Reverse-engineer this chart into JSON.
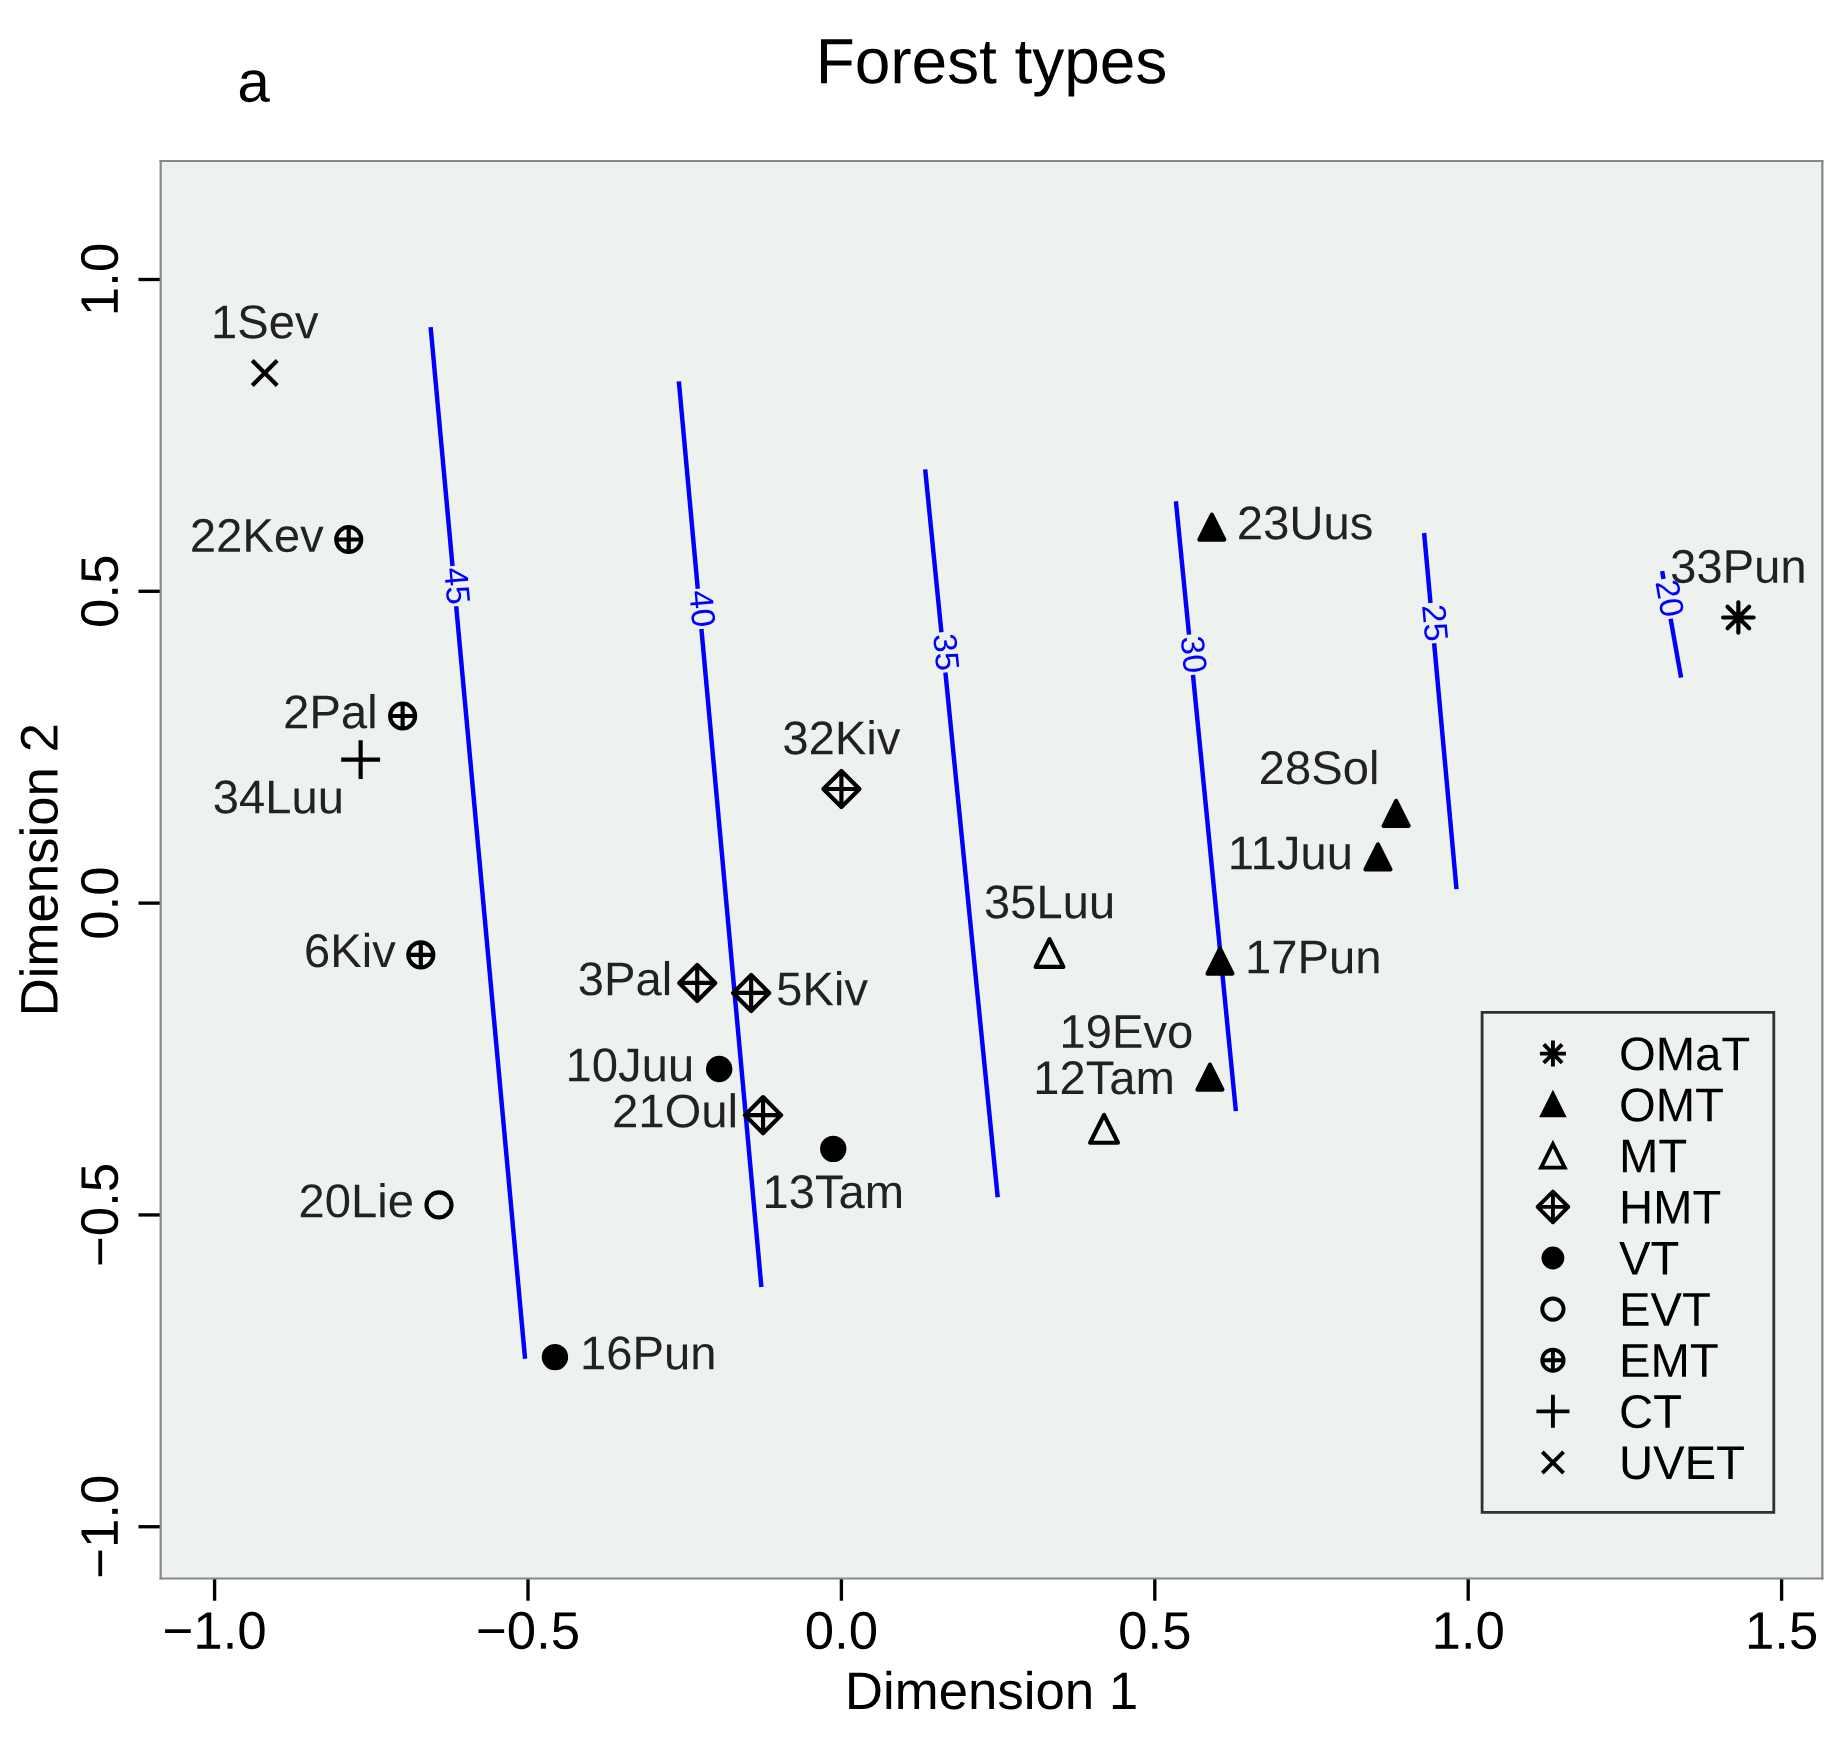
{
  "chart_data": {
    "type": "scatter",
    "title": "Forest types",
    "xlabel": "Dimension 1",
    "ylabel": "Dimension 2",
    "xlim": [
      -1.086,
      1.565
    ],
    "ylim": [
      -1.083,
      1.19
    ],
    "xticks": [
      {
        "value": -1.0,
        "label": "−1.0"
      },
      {
        "value": -0.5,
        "label": "−0.5"
      },
      {
        "value": 0.0,
        "label": "0.0"
      },
      {
        "value": 0.5,
        "label": "0.5"
      },
      {
        "value": 1.0,
        "label": "1.0"
      },
      {
        "value": 1.5,
        "label": "1.5"
      }
    ],
    "yticks": [
      {
        "value": -1.0,
        "label": "−1.0"
      },
      {
        "value": -0.5,
        "label": "−0.5"
      },
      {
        "value": 0.0,
        "label": "0.0"
      },
      {
        "value": 0.5,
        "label": "0.5"
      },
      {
        "value": 1.0,
        "label": "1.0"
      }
    ],
    "grid": false,
    "legend": "bottom right",
    "series": [
      {
        "name": "OMaT",
        "color": "#000000",
        "marker": "star",
        "x": [
          1.431
        ],
        "values": [
          0.458
        ]
      },
      {
        "name": "OMT",
        "color": "#000000",
        "marker": "triangle",
        "x": [
          0.591,
          0.856,
          0.885,
          0.604,
          0.588
        ],
        "values": [
          0.603,
          0.074,
          0.144,
          -0.093,
          -0.279
        ]
      },
      {
        "name": "MT",
        "color": "#000000",
        "marker": "triangle-open",
        "x": [
          0.332,
          0.419
        ],
        "values": [
          -0.08,
          -0.362
        ]
      },
      {
        "name": "HMT",
        "color": "#000000",
        "marker": "cross-diamond",
        "x": [
          -0.23,
          -0.144,
          -0.125,
          0.0
        ],
        "values": [
          -0.128,
          -0.144,
          -0.34,
          0.183
        ]
      },
      {
        "name": "VT",
        "color": "#000000",
        "marker": "circle",
        "x": [
          -0.457,
          -0.195,
          -0.013
        ],
        "values": [
          -0.728,
          -0.266,
          -0.394
        ]
      },
      {
        "name": "EVT",
        "color": "#000000",
        "marker": "circle-open",
        "x": [
          -0.642
        ],
        "values": [
          -0.484
        ]
      },
      {
        "name": "EMT",
        "color": "#000000",
        "marker": "cross-ring",
        "x": [
          -0.786,
          -0.7,
          -0.671
        ],
        "values": [
          0.583,
          0.3,
          -0.083
        ]
      },
      {
        "name": "CT",
        "color": "#000000",
        "marker": "plus",
        "x": [
          -0.767
        ],
        "values": [
          0.23
        ]
      },
      {
        "name": "UVET",
        "color": "#000000",
        "marker": "cross",
        "x": [
          -0.92
        ],
        "values": [
          0.85
        ]
      },
      {
        "name": "45",
        "type": "line",
        "color": "#0000ff",
        "x": [
          -0.655,
          -0.505
        ],
        "values": [
          0.92,
          -0.727
        ]
      },
      {
        "name": "40",
        "type": "line",
        "color": "#0000ff",
        "x": [
          -0.259,
          -0.128
        ],
        "values": [
          0.833,
          -0.612
        ]
      },
      {
        "name": "35",
        "type": "line",
        "color": "#0000ff",
        "x": [
          0.134,
          0.249
        ],
        "values": [
          0.692,
          -0.468
        ]
      },
      {
        "name": "30",
        "type": "line",
        "color": "#0000ff",
        "x": [
          0.534,
          0.629
        ],
        "values": [
          0.641,
          -0.33
        ]
      },
      {
        "name": "25",
        "type": "line",
        "color": "#0000ff",
        "x": [
          0.93,
          0.981
        ],
        "values": [
          0.59,
          0.026
        ]
      },
      {
        "name": "20",
        "type": "line",
        "color": "#0000ff",
        "x": [
          1.31,
          1.339
        ],
        "values": [
          0.529,
          0.365
        ]
      }
    ],
    "annotations": [
      "a",
      {
        "text": "1Sev",
        "x": -0.92,
        "y": 0.85
      },
      {
        "text": "22Kev",
        "x": -0.786,
        "y": 0.583
      },
      {
        "text": "2Pal",
        "x": -0.7,
        "y": 0.3
      },
      {
        "text": "34Luu",
        "x": -0.767,
        "y": 0.23
      },
      {
        "text": "6Kiv",
        "x": -0.671,
        "y": -0.083
      },
      {
        "text": "20Lie",
        "x": -0.642,
        "y": -0.484
      },
      {
        "text": "16Pun",
        "x": -0.457,
        "y": -0.728
      },
      {
        "text": "10Juu",
        "x": -0.195,
        "y": -0.266
      },
      {
        "text": "13Tam",
        "x": -0.013,
        "y": -0.394
      },
      {
        "text": "3Pal",
        "x": -0.23,
        "y": -0.128
      },
      {
        "text": "5Kiv",
        "x": -0.144,
        "y": -0.144
      },
      {
        "text": "21Oul",
        "x": -0.125,
        "y": -0.34
      },
      {
        "text": "32Kiv",
        "x": 0.0,
        "y": 0.183
      },
      {
        "text": "35Luu",
        "x": 0.332,
        "y": -0.08
      },
      {
        "text": "12Tam",
        "x": 0.419,
        "y": -0.362
      },
      {
        "text": "23Uus",
        "x": 0.591,
        "y": 0.603
      },
      {
        "text": "11Juu",
        "x": 0.856,
        "y": 0.074
      },
      {
        "text": "28Sol",
        "x": 0.885,
        "y": 0.144
      },
      {
        "text": "17Pun",
        "x": 0.604,
        "y": -0.093
      },
      {
        "text": "19Evo",
        "x": 0.588,
        "y": -0.279
      },
      {
        "text": "33Pun",
        "x": 1.431,
        "y": 0.458
      }
    ]
  }
}
